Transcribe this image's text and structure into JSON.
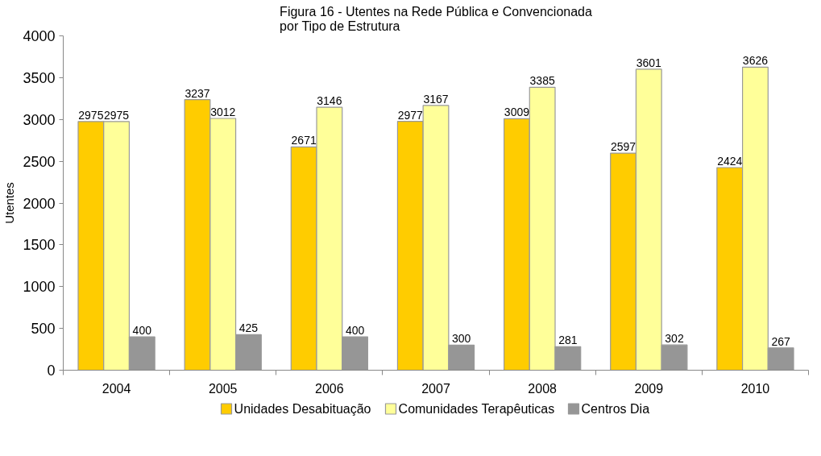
{
  "chart_data": {
    "type": "bar",
    "title": "Figura 16 - Utentes na Rede Pública e Convencionada por Tipo de Estrutura",
    "ylabel": "Utentes",
    "categories": [
      "2004",
      "2005",
      "2006",
      "2007",
      "2008",
      "2009",
      "2010"
    ],
    "series": [
      {
        "name": "Unidades Desabituação",
        "color": "#ffcc00",
        "values": [
          2975,
          3237,
          2671,
          2977,
          3009,
          2597,
          2424
        ]
      },
      {
        "name": "Comunidades Terapêuticas",
        "color": "#ffff99",
        "values": [
          2975,
          3012,
          3146,
          3167,
          3385,
          3601,
          3626
        ]
      },
      {
        "name": "Centros Dia",
        "color": "#969696",
        "values": [
          400,
          425,
          400,
          300,
          281,
          302,
          267
        ]
      }
    ],
    "ylim": [
      0,
      4000
    ],
    "yticks": [
      0,
      500,
      1000,
      1500,
      2000,
      2500,
      3000,
      3500,
      4000
    ],
    "data_labels": true,
    "legend": "bottom",
    "grid": false
  }
}
